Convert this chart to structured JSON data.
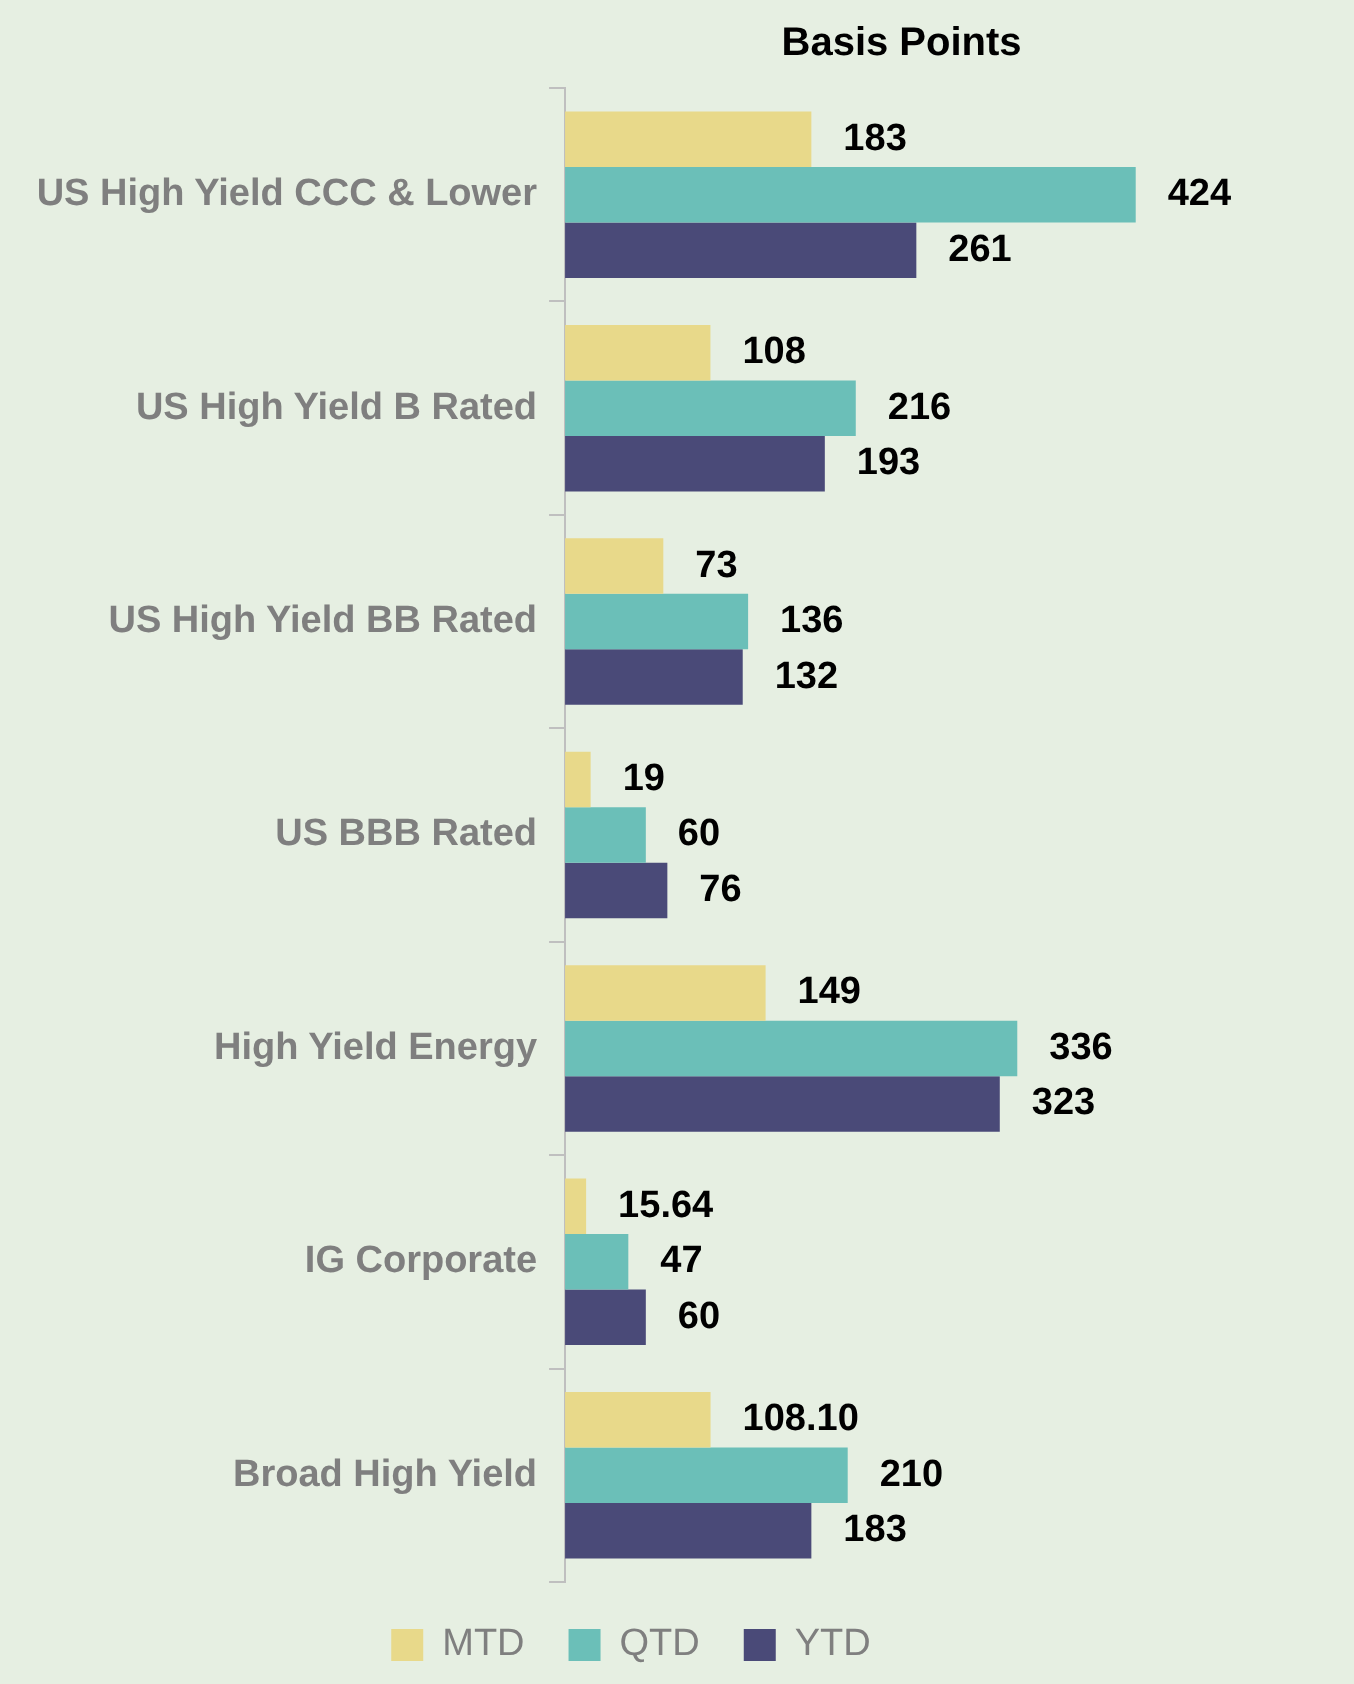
{
  "chart_data": {
    "type": "bar",
    "orientation": "horizontal",
    "title": "Basis Points",
    "tick_labels": "y",
    "categories": [
      "US High Yield CCC & Lower",
      "US High Yield B Rated",
      "US High Yield BB Rated",
      "US BBB Rated",
      "High Yield Energy",
      "IG Corporate",
      "Broad High Yield"
    ],
    "series": [
      {
        "name": "MTD",
        "color": "#e8d98a",
        "values": [
          183,
          108,
          73,
          19,
          149,
          15.64,
          108.1
        ],
        "value_labels": [
          "183",
          "108",
          "73",
          "19",
          "149",
          "15.64",
          "108.10"
        ]
      },
      {
        "name": "QTD",
        "color": "#6bbfb8",
        "values": [
          424,
          216,
          136,
          60,
          336,
          47,
          210
        ],
        "value_labels": [
          "424",
          "216",
          "136",
          "60",
          "336",
          "47",
          "210"
        ]
      },
      {
        "name": "YTD",
        "color": "#4a4a78",
        "values": [
          261,
          193,
          132,
          76,
          323,
          60,
          183
        ],
        "value_labels": [
          "261",
          "193",
          "132",
          "76",
          "323",
          "60",
          "183"
        ]
      }
    ],
    "legend": "bottom"
  }
}
